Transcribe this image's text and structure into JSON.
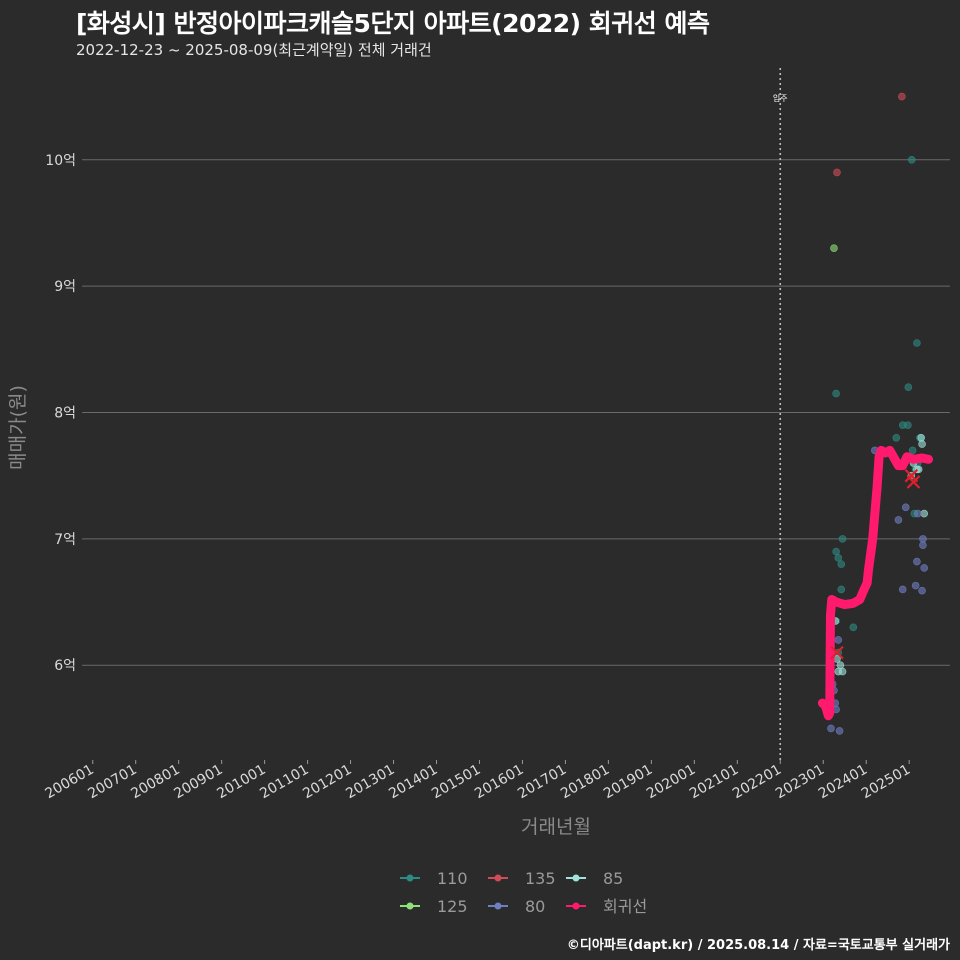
{
  "header": {
    "title": "[화성시] 반정아이파크캐슬5단지 아파트(2022) 회귀선 예측",
    "subtitle": "2022-12-23 ~ 2025-08-09(최근계약일) 전체 거래건"
  },
  "footer": {
    "credit": "©디아파트(dapt.kr) / 2025.08.14 / 자료=국토교통부 실거래가"
  },
  "chart_data": {
    "type": "scatter",
    "title": "[화성시] 반정아이파크캐슬5단지 아파트(2022) 회귀선 예측",
    "subtitle": "2022-12-23 ~ 2025-08-09(최근계약일) 전체 거래건",
    "xlabel": "거래년월",
    "ylabel": "매매가(원)",
    "x_tick_labels": [
      "200601",
      "200701",
      "200801",
      "200901",
      "201001",
      "201101",
      "201201",
      "201301",
      "201401",
      "201501",
      "201601",
      "201701",
      "201801",
      "201901",
      "202001",
      "202101",
      "202201",
      "202301",
      "202401",
      "202501"
    ],
    "y_ticks": [
      {
        "value": 6,
        "label": "6억"
      },
      {
        "value": 7,
        "label": "7억"
      },
      {
        "value": 8,
        "label": "8억"
      },
      {
        "value": 9,
        "label": "9억"
      },
      {
        "value": 10,
        "label": "10억"
      }
    ],
    "ylim": [
      5.25,
      10.75
    ],
    "xlim": [
      2005.75,
      2025.95
    ],
    "grid": "horizontal",
    "background": "#2b2b2b",
    "annotation": {
      "label": "입주",
      "x": 2022.0
    },
    "legend_position": "bottom",
    "legend": [
      {
        "name": "110",
        "color": "#2e8b84"
      },
      {
        "name": "135",
        "color": "#d24b5a"
      },
      {
        "name": "85",
        "color": "#9fe3da"
      },
      {
        "name": "125",
        "color": "#8fe07a"
      },
      {
        "name": "80",
        "color": "#6f7fc2"
      },
      {
        "name": "회귀선",
        "color": "#ff1a6e"
      }
    ],
    "series": [
      {
        "name": "110",
        "color": "#2e8b84",
        "points": [
          [
            2023.3,
            8.15
          ],
          [
            2025.06,
            10.0
          ],
          [
            2024.98,
            8.2
          ],
          [
            2025.18,
            8.55
          ],
          [
            2023.3,
            6.9
          ],
          [
            2023.35,
            6.85
          ],
          [
            2023.3,
            6.35
          ],
          [
            2023.35,
            6.1
          ],
          [
            2023.42,
            6.8
          ],
          [
            2023.45,
            7.0
          ],
          [
            2023.42,
            6.6
          ],
          [
            2023.7,
            6.3
          ],
          [
            2024.85,
            7.9
          ],
          [
            2024.97,
            7.9
          ],
          [
            2024.7,
            7.8
          ],
          [
            2025.08,
            7.7
          ],
          [
            2025.15,
            7.55
          ],
          [
            2025.2,
            7.6
          ],
          [
            2025.12,
            7.2
          ],
          [
            2025.25,
            7.8
          ]
        ]
      },
      {
        "name": "135",
        "color": "#d24b5a",
        "points": [
          [
            2023.32,
            9.9
          ],
          [
            2024.83,
            10.5
          ]
        ]
      },
      {
        "name": "125",
        "color": "#8fe07a",
        "points": [
          [
            2023.25,
            9.3
          ]
        ]
      },
      {
        "name": "85",
        "color": "#9fe3da",
        "points": [
          [
            2023.28,
            6.35
          ],
          [
            2023.32,
            6.05
          ],
          [
            2023.4,
            6.0
          ],
          [
            2023.45,
            5.95
          ],
          [
            2023.35,
            5.95
          ],
          [
            2025.05,
            7.5
          ],
          [
            2025.18,
            7.55
          ],
          [
            2025.28,
            7.8
          ],
          [
            2025.3,
            7.75
          ],
          [
            2025.35,
            7.2
          ],
          [
            2025.22,
            7.55
          ],
          [
            2025.1,
            7.6
          ]
        ]
      },
      {
        "name": "80",
        "color": "#6f7fc2",
        "points": [
          [
            2023.02,
            5.7
          ],
          [
            2023.18,
            5.5
          ],
          [
            2023.38,
            5.48
          ],
          [
            2023.28,
            5.7
          ],
          [
            2023.3,
            5.65
          ],
          [
            2023.25,
            5.8
          ],
          [
            2023.22,
            5.85
          ],
          [
            2023.35,
            6.2
          ],
          [
            2024.05,
            6.73
          ],
          [
            2024.75,
            7.15
          ],
          [
            2024.85,
            6.6
          ],
          [
            2024.92,
            7.25
          ],
          [
            2025.15,
            6.63
          ],
          [
            2025.18,
            6.82
          ],
          [
            2025.32,
            7.0
          ],
          [
            2025.32,
            6.95
          ],
          [
            2025.3,
            6.59
          ],
          [
            2025.35,
            6.77
          ],
          [
            2025.2,
            7.2
          ],
          [
            2024.2,
            7.7
          ]
        ]
      }
    ],
    "regression": {
      "name": "회귀선",
      "color": "#ff1a6e",
      "points": [
        [
          2022.98,
          5.7
        ],
        [
          2023.05,
          5.68
        ],
        [
          2023.12,
          5.6
        ],
        [
          2023.15,
          5.62
        ],
        [
          2023.17,
          6.4
        ],
        [
          2023.2,
          6.52
        ],
        [
          2023.3,
          6.5
        ],
        [
          2023.5,
          6.48
        ],
        [
          2023.7,
          6.49
        ],
        [
          2023.85,
          6.52
        ],
        [
          2023.95,
          6.6
        ],
        [
          2024.02,
          6.65
        ],
        [
          2024.05,
          6.75
        ],
        [
          2024.15,
          7.0
        ],
        [
          2024.25,
          7.4
        ],
        [
          2024.3,
          7.65
        ],
        [
          2024.35,
          7.7
        ],
        [
          2024.45,
          7.68
        ],
        [
          2024.55,
          7.7
        ],
        [
          2024.65,
          7.64
        ],
        [
          2024.75,
          7.58
        ],
        [
          2024.85,
          7.58
        ],
        [
          2024.95,
          7.65
        ],
        [
          2025.1,
          7.63
        ],
        [
          2025.3,
          7.64
        ],
        [
          2025.45,
          7.63
        ]
      ]
    },
    "predicted_markers": [
      [
        2023.32,
        6.1
      ],
      [
        2025.05,
        7.5
      ],
      [
        2025.1,
        7.45
      ]
    ]
  }
}
